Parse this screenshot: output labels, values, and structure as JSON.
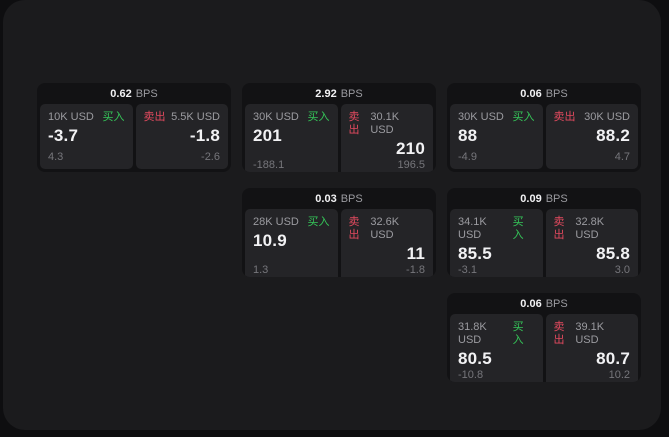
{
  "labels": {
    "buy": "买入",
    "sell": "卖出",
    "bps_unit": "BPS"
  },
  "colors": {
    "page_bg": "#0e0e10",
    "panel_bg": "#1b1b1d",
    "card_bg": "#121214",
    "tile_bg": "#242427",
    "green": "#35c759",
    "red": "#e34a5f",
    "text_primary": "#f2f2f4",
    "text_secondary": "#9b9ba0",
    "text_dim": "#76767b"
  },
  "cards": [
    {
      "col": 1,
      "row": 1,
      "bps": "0.62",
      "buy": {
        "size": "10K USD",
        "value": "-3.7",
        "sub": "4.3"
      },
      "sell": {
        "size": "5.5K USD",
        "value": "-1.8",
        "sub": "-2.6"
      }
    },
    {
      "col": 2,
      "row": 1,
      "bps": "2.92",
      "buy": {
        "size": "30K USD",
        "value": "201",
        "sub": "-188.1"
      },
      "sell": {
        "size": "30.1K USD",
        "value": "210",
        "sub": "196.5"
      }
    },
    {
      "col": 3,
      "row": 1,
      "bps": "0.06",
      "buy": {
        "size": "30K USD",
        "value": "88",
        "sub": "-4.9"
      },
      "sell": {
        "size": "30K USD",
        "value": "88.2",
        "sub": "4.7"
      }
    },
    {
      "col": 2,
      "row": 2,
      "bps": "0.03",
      "buy": {
        "size": "28K USD",
        "value": "10.9",
        "sub": "1.3"
      },
      "sell": {
        "size": "32.6K USD",
        "value": "11",
        "sub": "-1.8"
      }
    },
    {
      "col": 3,
      "row": 2,
      "bps": "0.09",
      "buy": {
        "size": "34.1K USD",
        "value": "85.5",
        "sub": "-3.1"
      },
      "sell": {
        "size": "32.8K USD",
        "value": "85.8",
        "sub": "3.0"
      }
    },
    {
      "col": 3,
      "row": 3,
      "bps": "0.06",
      "buy": {
        "size": "31.8K USD",
        "value": "80.5",
        "sub": "-10.8"
      },
      "sell": {
        "size": "39.1K USD",
        "value": "80.7",
        "sub": "10.2"
      }
    }
  ]
}
